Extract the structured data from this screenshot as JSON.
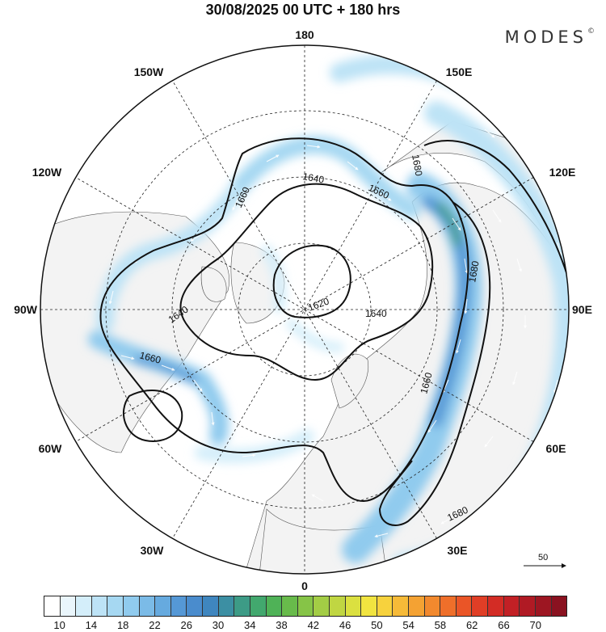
{
  "title": "30/08/2025  00 UTC  + 180 hrs",
  "brand": "MODES",
  "brand_mark": "©",
  "longitude_labels": [
    {
      "text": "180",
      "lon": 180
    },
    {
      "text": "150E",
      "lon": 150
    },
    {
      "text": "120E",
      "lon": 120
    },
    {
      "text": "90E",
      "lon": 90
    },
    {
      "text": "60E",
      "lon": 60
    },
    {
      "text": "30E",
      "lon": 30
    },
    {
      "text": "0",
      "lon": 0
    },
    {
      "text": "30W",
      "lon": -30
    },
    {
      "text": "60W",
      "lon": -60
    },
    {
      "text": "90W",
      "lon": -90
    },
    {
      "text": "120W",
      "lon": -120
    },
    {
      "text": "150W",
      "lon": -150
    }
  ],
  "contour_labels": [
    "1660",
    "1640",
    "1660",
    "1680",
    "1620",
    "1640",
    "1680",
    "1640",
    "1660",
    "1660",
    "1680"
  ],
  "vector_reference": {
    "value": "50",
    "icon": "right-arrow-icon"
  },
  "colorbar": {
    "labels": [
      "10",
      "14",
      "18",
      "22",
      "26",
      "30",
      "34",
      "38",
      "42",
      "46",
      "50",
      "54",
      "58",
      "62",
      "66",
      "70"
    ],
    "colors": [
      "#ffffff",
      "#eaf6fc",
      "#d4eefa",
      "#bde3f6",
      "#a6d8f2",
      "#90cbee",
      "#7bbbe7",
      "#66aadf",
      "#5598d6",
      "#4a8ccd",
      "#3f86bf",
      "#3c8fa3",
      "#3d9b86",
      "#42a86e",
      "#4fb257",
      "#68bb4b",
      "#86c447",
      "#a3cd45",
      "#c0d642",
      "#dbe040",
      "#f1e440",
      "#f7d23d",
      "#f6ba38",
      "#f4a233",
      "#f2892e",
      "#ef6f2a",
      "#ea5527",
      "#e03e26",
      "#d32c25",
      "#c22025",
      "#b01a24",
      "#9d1622",
      "#8a1220"
    ]
  }
}
